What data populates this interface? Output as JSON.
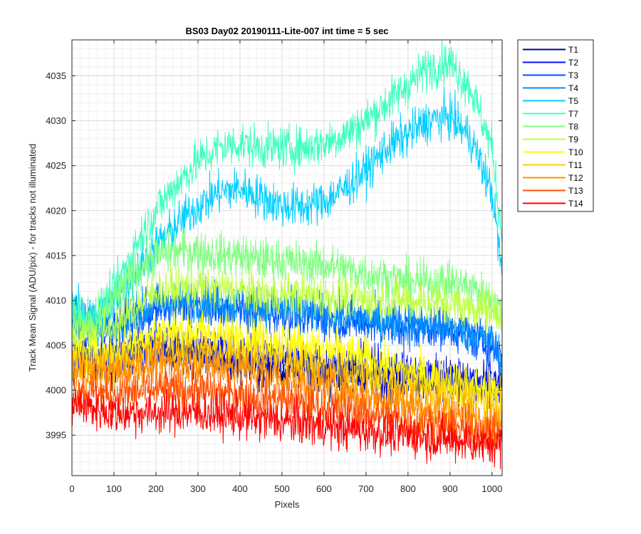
{
  "chart_data": {
    "type": "line",
    "title": "BS03 Day02 20190111-Lite-007 int time = 5 sec",
    "xlabel": "Pixels",
    "ylabel": "Track Mean Signal (ADU/pix) - for tracks not illuminated",
    "xlim": [
      0,
      1024
    ],
    "ylim": [
      3990.5,
      4039
    ],
    "xticks": [
      0,
      100,
      200,
      300,
      400,
      500,
      600,
      700,
      800,
      900,
      1000
    ],
    "yticks": [
      3995,
      4000,
      4005,
      4010,
      4015,
      4020,
      4025,
      4030,
      4035
    ],
    "grid": "major and minor",
    "legend_position": "outside-top-right",
    "noise_amplitude_adu": 1.2,
    "series": [
      {
        "name": "T1",
        "color": "#00008F",
        "x": [
          0,
          100,
          200,
          300,
          400,
          500,
          600,
          700,
          800,
          900,
          1000,
          1024
        ],
        "y": [
          4003,
          4003,
          4004.5,
          4004,
          4003,
          4002.5,
          4002,
          4001.5,
          4001,
          4001,
          4000,
          4000
        ]
      },
      {
        "name": "T2",
        "color": "#0010FF",
        "x": [
          0,
          100,
          200,
          300,
          400,
          500,
          600,
          700,
          800,
          900,
          1000,
          1024
        ],
        "y": [
          4004,
          4004,
          4005.5,
          4004.5,
          4004,
          4003.5,
          4003,
          4002.5,
          4002,
          4001.5,
          4001,
          4001
        ]
      },
      {
        "name": "T3",
        "color": "#0050FF",
        "x": [
          0,
          100,
          200,
          300,
          400,
          500,
          600,
          700,
          800,
          900,
          1000,
          1024
        ],
        "y": [
          4008,
          4007,
          4009,
          4009.5,
          4009,
          4008.5,
          4008,
          4007.5,
          4007,
          4007,
          4005,
          4004
        ]
      },
      {
        "name": "T4",
        "color": "#0090FF",
        "x": [
          0,
          100,
          200,
          300,
          400,
          500,
          600,
          700,
          800,
          900,
          1000,
          1024
        ],
        "y": [
          4008,
          4007,
          4009.5,
          4010,
          4009.5,
          4009,
          4008.5,
          4008,
          4007.5,
          4007,
          4005.5,
          4003
        ]
      },
      {
        "name": "T5",
        "color": "#00CFFF",
        "x": [
          0,
          50,
          100,
          150,
          200,
          250,
          300,
          350,
          400,
          450,
          500,
          550,
          600,
          650,
          700,
          750,
          800,
          850,
          900,
          950,
          1000,
          1024
        ],
        "y": [
          4009,
          4008,
          4010,
          4013,
          4016,
          4018.5,
          4020.5,
          4022,
          4022.5,
          4021.5,
          4020.5,
          4020.5,
          4021,
          4022.5,
          4024.5,
          4027,
          4028.5,
          4030,
          4030.5,
          4028,
          4022,
          4013
        ]
      },
      {
        "name": "T7",
        "color": "#40FFBF",
        "x": [
          0,
          50,
          100,
          150,
          200,
          250,
          300,
          350,
          400,
          450,
          500,
          550,
          600,
          650,
          700,
          750,
          800,
          850,
          900,
          950,
          1000,
          1024
        ],
        "y": [
          4009,
          4008,
          4011,
          4016,
          4020,
          4023,
          4025.5,
          4027,
          4027.5,
          4027,
          4027,
          4027,
          4027.5,
          4028.5,
          4030,
          4032,
          4034,
          4036,
          4036.5,
          4033.5,
          4027,
          4017
        ]
      },
      {
        "name": "T8",
        "color": "#80FF80",
        "x": [
          0,
          50,
          100,
          150,
          200,
          250,
          300,
          350,
          400,
          450,
          500,
          550,
          600,
          650,
          700,
          750,
          800,
          850,
          900,
          950,
          1000,
          1024
        ],
        "y": [
          4007,
          4007,
          4010,
          4013,
          4015,
          4015.5,
          4015.5,
          4015,
          4015,
          4014.5,
          4014.5,
          4014,
          4014,
          4013.5,
          4013,
          4012.5,
          4012,
          4012,
          4012,
          4011.5,
          4010,
          4008.5
        ]
      },
      {
        "name": "T9",
        "color": "#BFFF40",
        "x": [
          0,
          100,
          200,
          300,
          400,
          500,
          600,
          700,
          800,
          900,
          1000,
          1024
        ],
        "y": [
          4006,
          4007,
          4011,
          4011.5,
          4011,
          4010.5,
          4010.5,
          4010,
          4010,
          4009.5,
          4009,
          4008.5
        ]
      },
      {
        "name": "T10",
        "color": "#FFFF00",
        "x": [
          0,
          100,
          200,
          300,
          400,
          500,
          600,
          700,
          800,
          900,
          1000,
          1024
        ],
        "y": [
          4004,
          4004,
          4006.5,
          4006.5,
          4006,
          4005.5,
          4004.5,
          4003.5,
          4002,
          4001,
          4000,
          3999.5
        ]
      },
      {
        "name": "T11",
        "color": "#FFCF00",
        "x": [
          0,
          100,
          200,
          300,
          400,
          500,
          600,
          700,
          800,
          900,
          1000,
          1024
        ],
        "y": [
          4003,
          4003,
          4004.5,
          4004.5,
          4004,
          4003.5,
          4002.5,
          4001.5,
          4000.5,
          3999.5,
          3998.5,
          3998
        ]
      },
      {
        "name": "T12",
        "color": "#FF9000",
        "x": [
          0,
          100,
          200,
          300,
          400,
          500,
          600,
          700,
          800,
          900,
          1000,
          1024
        ],
        "y": [
          4002,
          4002,
          4003,
          4003,
          4002.5,
          4001.5,
          4000.5,
          3999.5,
          3998.5,
          3997.5,
          3996.5,
          3996
        ]
      },
      {
        "name": "T13",
        "color": "#FF5000",
        "x": [
          0,
          100,
          200,
          300,
          400,
          500,
          600,
          700,
          800,
          900,
          1000,
          1024
        ],
        "y": [
          4000,
          3999.5,
          4000,
          4000,
          3999.5,
          3999,
          3998,
          3997.5,
          3996.5,
          3996,
          3995,
          3995
        ]
      },
      {
        "name": "T14",
        "color": "#FF0000",
        "x": [
          0,
          100,
          200,
          300,
          400,
          500,
          600,
          700,
          800,
          900,
          1000,
          1024
        ],
        "y": [
          3998.5,
          3997.5,
          3997.5,
          3997.5,
          3997,
          3996.5,
          3996,
          3995.5,
          3995,
          3994.5,
          3994,
          3994
        ]
      }
    ]
  }
}
